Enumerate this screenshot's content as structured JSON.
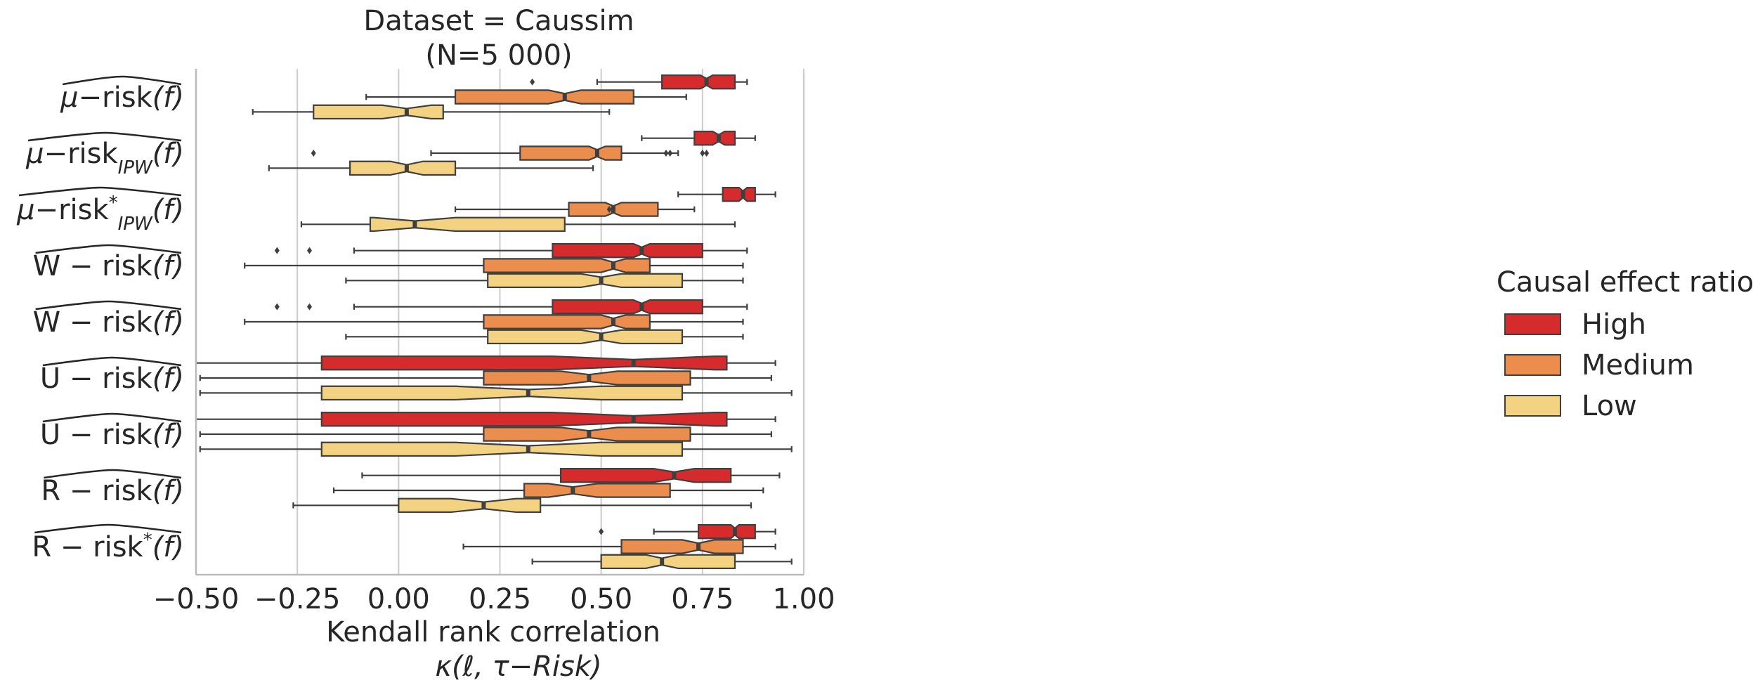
{
  "chart_data": {
    "type": "boxplot",
    "title": "Dataset = Caussim",
    "subtitle": "(N=5 000)",
    "xlabel": "Kendall rank correlation",
    "xlabel_formula": "κ(ℓ, τ−Risk)",
    "xlim": [
      -0.5,
      1.0
    ],
    "xticks": [
      -0.5,
      -0.25,
      0.0,
      0.25,
      0.5,
      0.75,
      1.0
    ],
    "xtick_labels": [
      "−0.50",
      "−0.25",
      "0.00",
      "0.25",
      "0.50",
      "0.75",
      "1.00"
    ],
    "vertical_grid": true,
    "notched": true,
    "orientation": "horizontal",
    "categories": [
      {
        "base": "μ−risk",
        "sub": "",
        "sup": "",
        "arg": "(f)"
      },
      {
        "base": "μ−risk",
        "sub": "IPW",
        "sup": "",
        "arg": "(f)"
      },
      {
        "base": "μ−risk",
        "sub": "IPW",
        "sup": "*",
        "arg": "(f)"
      },
      {
        "base": "W − risk",
        "sub": "",
        "sup": "",
        "arg": "(f)"
      },
      {
        "base": "W − risk",
        "sub": "",
        "sup": "",
        "arg": "(f)"
      },
      {
        "base": "U − risk",
        "sub": "",
        "sup": "",
        "arg": "(f)"
      },
      {
        "base": "U − risk",
        "sub": "",
        "sup": "",
        "arg": "(f)"
      },
      {
        "base": "R − risk",
        "sub": "",
        "sup": "",
        "arg": "(f)"
      },
      {
        "base": "R − risk",
        "sub": "",
        "sup": "*",
        "arg": "(f)"
      }
    ],
    "legend": {
      "title": "Causal effect ratio",
      "placement": "right",
      "entries": [
        "High",
        "Medium",
        "Low"
      ]
    },
    "series": [
      {
        "name": "High",
        "color": "#d62b2d",
        "boxes": [
          {
            "whislo": 0.49,
            "q1": 0.65,
            "med": 0.76,
            "q3": 0.83,
            "whishi": 0.86,
            "notch": [
              0.745,
              0.775
            ],
            "fliers": [
              0.33
            ]
          },
          {
            "whislo": 0.6,
            "q1": 0.73,
            "med": 0.79,
            "q3": 0.83,
            "whishi": 0.88,
            "notch": [
              0.775,
              0.805
            ],
            "fliers": []
          },
          {
            "whislo": 0.69,
            "q1": 0.8,
            "med": 0.85,
            "q3": 0.88,
            "whishi": 0.93,
            "notch": [
              0.84,
              0.86
            ],
            "fliers": []
          },
          {
            "whislo": -0.11,
            "q1": 0.38,
            "med": 0.6,
            "q3": 0.75,
            "whishi": 0.86,
            "notch": [
              0.58,
              0.62
            ],
            "fliers": [
              -0.3,
              -0.22
            ]
          },
          {
            "whislo": -0.11,
            "q1": 0.38,
            "med": 0.6,
            "q3": 0.75,
            "whishi": 0.86,
            "notch": [
              0.58,
              0.62
            ],
            "fliers": [
              -0.3,
              -0.22
            ]
          },
          {
            "whislo": -0.5,
            "q1": -0.19,
            "med": 0.58,
            "q3": 0.81,
            "whishi": 0.93,
            "notch": [
              0.38,
              0.78
            ],
            "fliers": []
          },
          {
            "whislo": -0.5,
            "q1": -0.19,
            "med": 0.58,
            "q3": 0.81,
            "whishi": 0.93,
            "notch": [
              0.38,
              0.78
            ],
            "fliers": []
          },
          {
            "whislo": -0.09,
            "q1": 0.4,
            "med": 0.68,
            "q3": 0.82,
            "whishi": 0.94,
            "notch": [
              0.63,
              0.73
            ],
            "fliers": []
          },
          {
            "whislo": 0.63,
            "q1": 0.74,
            "med": 0.83,
            "q3": 0.88,
            "whishi": 0.93,
            "notch": [
              0.82,
              0.84
            ],
            "fliers": [
              0.5
            ]
          }
        ]
      },
      {
        "name": "Medium",
        "color": "#eb8d4d",
        "boxes": [
          {
            "whislo": -0.08,
            "q1": 0.14,
            "med": 0.41,
            "q3": 0.58,
            "whishi": 0.71,
            "notch": [
              0.37,
              0.45
            ],
            "fliers": []
          },
          {
            "whislo": 0.08,
            "q1": 0.3,
            "med": 0.49,
            "q3": 0.55,
            "whishi": 0.69,
            "notch": [
              0.47,
              0.51
            ],
            "fliers": [
              -0.21,
              0.66,
              0.67,
              0.75,
              0.76
            ]
          },
          {
            "whislo": 0.14,
            "q1": 0.42,
            "med": 0.53,
            "q3": 0.64,
            "whishi": 0.73,
            "notch": [
              0.51,
              0.55
            ],
            "fliers": [
              0.52
            ]
          },
          {
            "whislo": -0.38,
            "q1": 0.21,
            "med": 0.53,
            "q3": 0.62,
            "whishi": 0.85,
            "notch": [
              0.5,
              0.56
            ],
            "fliers": []
          },
          {
            "whislo": -0.38,
            "q1": 0.21,
            "med": 0.53,
            "q3": 0.62,
            "whishi": 0.85,
            "notch": [
              0.5,
              0.56
            ],
            "fliers": []
          },
          {
            "whislo": -0.49,
            "q1": 0.21,
            "med": 0.47,
            "q3": 0.72,
            "whishi": 0.92,
            "notch": [
              0.4,
              0.54
            ],
            "fliers": []
          },
          {
            "whislo": -0.49,
            "q1": 0.21,
            "med": 0.47,
            "q3": 0.72,
            "whishi": 0.92,
            "notch": [
              0.4,
              0.54
            ],
            "fliers": []
          },
          {
            "whislo": -0.16,
            "q1": 0.31,
            "med": 0.43,
            "q3": 0.67,
            "whishi": 0.9,
            "notch": [
              0.37,
              0.49
            ],
            "fliers": []
          },
          {
            "whislo": 0.16,
            "q1": 0.55,
            "med": 0.74,
            "q3": 0.85,
            "whishi": 0.93,
            "notch": [
              0.7,
              0.78
            ],
            "fliers": []
          }
        ]
      },
      {
        "name": "Low",
        "color": "#f3d381",
        "boxes": [
          {
            "whislo": -0.36,
            "q1": -0.21,
            "med": 0.02,
            "q3": 0.11,
            "whishi": 0.52,
            "notch": [
              -0.04,
              0.08
            ],
            "fliers": []
          },
          {
            "whislo": -0.32,
            "q1": -0.12,
            "med": 0.02,
            "q3": 0.14,
            "whishi": 0.48,
            "notch": [
              -0.02,
              0.06
            ],
            "fliers": []
          },
          {
            "whislo": -0.24,
            "q1": -0.07,
            "med": 0.04,
            "q3": 0.41,
            "whishi": 0.83,
            "notch": [
              -0.06,
              0.14
            ],
            "fliers": []
          },
          {
            "whislo": -0.13,
            "q1": 0.22,
            "med": 0.5,
            "q3": 0.7,
            "whishi": 0.85,
            "notch": [
              0.45,
              0.55
            ],
            "fliers": []
          },
          {
            "whislo": -0.13,
            "q1": 0.22,
            "med": 0.5,
            "q3": 0.7,
            "whishi": 0.85,
            "notch": [
              0.45,
              0.55
            ],
            "fliers": []
          },
          {
            "whislo": -0.49,
            "q1": -0.19,
            "med": 0.32,
            "q3": 0.7,
            "whishi": 0.97,
            "notch": [
              0.14,
              0.5
            ],
            "fliers": []
          },
          {
            "whislo": -0.49,
            "q1": -0.19,
            "med": 0.32,
            "q3": 0.7,
            "whishi": 0.97,
            "notch": [
              0.14,
              0.5
            ],
            "fliers": []
          },
          {
            "whislo": -0.26,
            "q1": 0.0,
            "med": 0.21,
            "q3": 0.35,
            "whishi": 0.87,
            "notch": [
              0.13,
              0.29
            ],
            "fliers": []
          },
          {
            "whislo": 0.33,
            "q1": 0.5,
            "med": 0.65,
            "q3": 0.83,
            "whishi": 0.97,
            "notch": [
              0.61,
              0.69
            ],
            "fliers": []
          }
        ]
      }
    ]
  }
}
